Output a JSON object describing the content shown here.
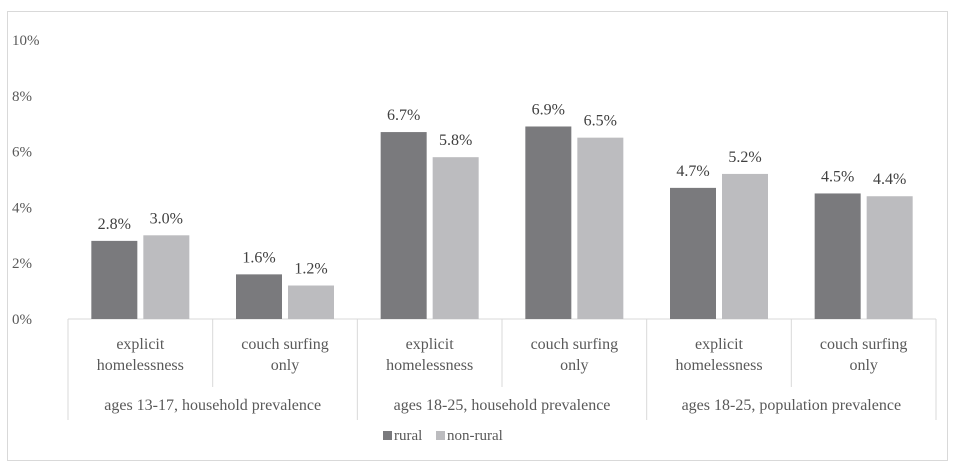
{
  "chart_data": {
    "type": "bar",
    "title": "",
    "xlabel": "",
    "ylabel": "",
    "ylim": [
      0,
      10
    ],
    "y_ticks": [
      "0%",
      "2%",
      "4%",
      "6%",
      "8%",
      "10%"
    ],
    "y_tick_values": [
      0,
      2,
      4,
      6,
      8,
      10
    ],
    "groups": [
      {
        "label": "ages 13-17, household prevalence",
        "categories": [
          [
            "explicit",
            "homelessness"
          ],
          [
            "couch surfing",
            "only"
          ]
        ]
      },
      {
        "label": "ages 18-25, household prevalence",
        "categories": [
          [
            "explicit",
            "homelessness"
          ],
          [
            "couch surfing",
            "only"
          ]
        ]
      },
      {
        "label": "ages 18-25, population prevalence",
        "categories": [
          [
            "explicit",
            "homelessness"
          ],
          [
            "couch surfing",
            "only"
          ]
        ]
      }
    ],
    "series": [
      {
        "name": "rural",
        "color": "#7a7a7d",
        "values": [
          2.8,
          1.6,
          6.7,
          6.9,
          4.7,
          4.5
        ],
        "labels": [
          "2.8%",
          "1.6%",
          "6.7%",
          "6.9%",
          "4.7%",
          "4.5%"
        ]
      },
      {
        "name": "non-rural",
        "color": "#bcbcbf",
        "values": [
          3.0,
          1.2,
          5.8,
          6.5,
          5.2,
          4.4
        ],
        "labels": [
          "3.0%",
          "1.2%",
          "5.8%",
          "6.5%",
          "5.2%",
          "4.4%"
        ]
      }
    ],
    "grid": false,
    "legend_position": "bottom"
  }
}
